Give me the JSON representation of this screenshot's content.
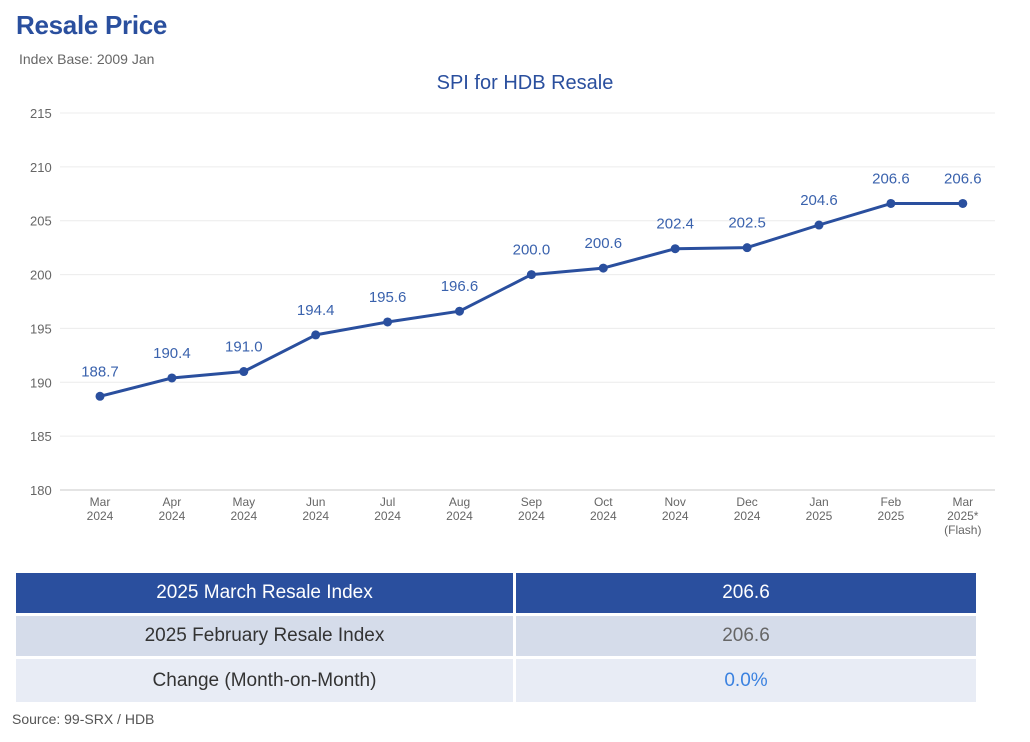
{
  "header": {
    "title": "Resale Price",
    "subtitle": "Index Base: 2009 Jan"
  },
  "chart_data": {
    "type": "line",
    "title": "SPI for HDB Resale",
    "xlabel": "",
    "ylabel": "",
    "ylim": [
      180,
      215
    ],
    "yticks": [
      180,
      185,
      190,
      195,
      200,
      205,
      210,
      215
    ],
    "grid": true,
    "categories": [
      [
        "Mar",
        "2024"
      ],
      [
        "Apr",
        "2024"
      ],
      [
        "May",
        "2024"
      ],
      [
        "Jun",
        "2024"
      ],
      [
        "Jul",
        "2024"
      ],
      [
        "Aug",
        "2024"
      ],
      [
        "Sep",
        "2024"
      ],
      [
        "Oct",
        "2024"
      ],
      [
        "Nov",
        "2024"
      ],
      [
        "Dec",
        "2024"
      ],
      [
        "Jan",
        "2025"
      ],
      [
        "Feb",
        "2025"
      ],
      [
        "Mar",
        "2025*",
        "(Flash)"
      ]
    ],
    "values": [
      188.7,
      190.4,
      191.0,
      194.4,
      195.6,
      196.6,
      200.0,
      200.6,
      202.4,
      202.5,
      204.6,
      206.6,
      206.6
    ],
    "data_labels": [
      "188.7",
      "190.4",
      "191.0",
      "194.4",
      "195.6",
      "196.6",
      "200.0",
      "200.6",
      "202.4",
      "202.5",
      "204.6",
      "206.6",
      "206.6"
    ],
    "line_color": "#2a4f9e",
    "label_color": "#3a62ad"
  },
  "summary": {
    "rows": [
      {
        "label": "2025 March Resale Index",
        "value": "206.6"
      },
      {
        "label": "2025 February Resale Index",
        "value": "206.6"
      },
      {
        "label": "Change (Month-on-Month)",
        "value": "0.0%"
      }
    ]
  },
  "footer": {
    "source": "Source: 99-SRX / HDB"
  }
}
